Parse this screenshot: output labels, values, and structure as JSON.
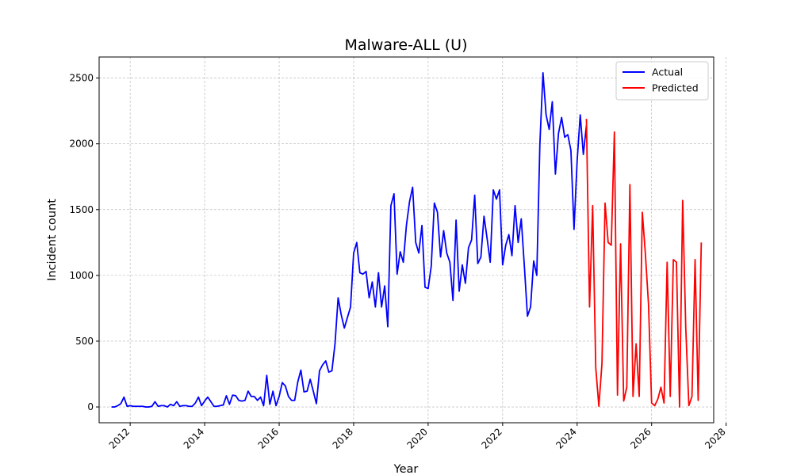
{
  "chart_data": {
    "type": "line",
    "title": "Malware-ALL (U)",
    "xlabel": "Year",
    "ylabel": "Incident count",
    "xlim": [
      "2011-03-01",
      "2027-09-01"
    ],
    "ylim": [
      -120,
      2660
    ],
    "x_ticks": [
      "2012",
      "2014",
      "2016",
      "2018",
      "2020",
      "2022",
      "2024",
      "2026",
      "2028"
    ],
    "y_ticks": [
      "0",
      "500",
      "1000",
      "1500",
      "2000",
      "2500"
    ],
    "grid": true,
    "legend_position": "top-right",
    "series": [
      {
        "name": "Actual",
        "color": "#0000ff",
        "x": [
          "2011-07",
          "2011-08",
          "2011-09",
          "2011-10",
          "2011-11",
          "2011-12",
          "2012-01",
          "2012-02",
          "2012-03",
          "2012-04",
          "2012-05",
          "2012-06",
          "2012-07",
          "2012-08",
          "2012-09",
          "2012-10",
          "2012-11",
          "2012-12",
          "2013-01",
          "2013-02",
          "2013-03",
          "2013-04",
          "2013-05",
          "2013-06",
          "2013-07",
          "2013-08",
          "2013-09",
          "2013-10",
          "2013-11",
          "2013-12",
          "2014-01",
          "2014-02",
          "2014-03",
          "2014-04",
          "2014-05",
          "2014-06",
          "2014-07",
          "2014-08",
          "2014-09",
          "2014-10",
          "2014-11",
          "2014-12",
          "2015-01",
          "2015-02",
          "2015-03",
          "2015-04",
          "2015-05",
          "2015-06",
          "2015-07",
          "2015-08",
          "2015-09",
          "2015-10",
          "2015-11",
          "2015-12",
          "2016-01",
          "2016-02",
          "2016-03",
          "2016-04",
          "2016-05",
          "2016-06",
          "2016-07",
          "2016-08",
          "2016-09",
          "2016-10",
          "2016-11",
          "2016-12",
          "2017-01",
          "2017-02",
          "2017-03",
          "2017-04",
          "2017-05",
          "2017-06",
          "2017-07",
          "2017-08",
          "2017-09",
          "2017-10",
          "2017-11",
          "2017-12",
          "2018-01",
          "2018-02",
          "2018-03",
          "2018-04",
          "2018-05",
          "2018-06",
          "2018-07",
          "2018-08",
          "2018-09",
          "2018-10",
          "2018-11",
          "2018-12",
          "2019-01",
          "2019-02",
          "2019-03",
          "2019-04",
          "2019-05",
          "2019-06",
          "2019-07",
          "2019-08",
          "2019-09",
          "2019-10",
          "2019-11",
          "2019-12",
          "2020-01",
          "2020-02",
          "2020-03",
          "2020-04",
          "2020-05",
          "2020-06",
          "2020-07",
          "2020-08",
          "2020-09",
          "2020-10",
          "2020-11",
          "2020-12",
          "2021-01",
          "2021-02",
          "2021-03",
          "2021-04",
          "2021-05",
          "2021-06",
          "2021-07",
          "2021-08",
          "2021-09",
          "2021-10",
          "2021-11",
          "2021-12",
          "2022-01",
          "2022-02",
          "2022-03",
          "2022-04",
          "2022-05",
          "2022-06",
          "2022-07",
          "2022-08",
          "2022-09",
          "2022-10",
          "2022-11",
          "2022-12",
          "2023-01",
          "2023-02",
          "2023-03",
          "2023-04",
          "2023-05",
          "2023-06",
          "2023-07",
          "2023-08",
          "2023-09",
          "2023-10",
          "2023-11",
          "2023-12",
          "2024-01",
          "2024-02",
          "2024-03",
          "2024-04"
        ],
        "values": [
          0,
          0,
          10,
          25,
          75,
          5,
          10,
          5,
          5,
          5,
          5,
          0,
          0,
          5,
          40,
          5,
          10,
          10,
          0,
          20,
          10,
          40,
          5,
          10,
          10,
          5,
          5,
          30,
          75,
          10,
          45,
          75,
          40,
          5,
          5,
          10,
          15,
          85,
          20,
          90,
          85,
          50,
          45,
          50,
          120,
          80,
          80,
          50,
          75,
          10,
          240,
          20,
          120,
          10,
          80,
          185,
          160,
          80,
          50,
          50,
          190,
          280,
          115,
          120,
          210,
          120,
          25,
          275,
          320,
          350,
          265,
          275,
          480,
          830,
          700,
          600,
          680,
          760,
          1170,
          1250,
          1020,
          1010,
          1030,
          830,
          950,
          760,
          1020,
          760,
          920,
          610,
          1530,
          1620,
          1010,
          1180,
          1100,
          1380,
          1560,
          1670,
          1250,
          1170,
          1380,
          910,
          900,
          1070,
          1550,
          1480,
          1140,
          1340,
          1170,
          1100,
          810,
          1420,
          880,
          1080,
          940,
          1210,
          1270,
          1610,
          1090,
          1140,
          1450,
          1280,
          1100,
          1650,
          1580,
          1650,
          1080,
          1230,
          1310,
          1150,
          1530,
          1250,
          1430,
          1070,
          690,
          760,
          1110,
          1000,
          2000,
          2540,
          2220,
          2110,
          2320,
          1770,
          2080,
          2200,
          2050,
          2070,
          1950,
          1350,
          1870,
          2220,
          1920,
          2140
        ]
      },
      {
        "name": "Predicted",
        "color": "#ff0000",
        "x": [
          "2024-04",
          "2024-05",
          "2024-06",
          "2024-07",
          "2024-08",
          "2024-09",
          "2024-10",
          "2024-11",
          "2024-12",
          "2025-01",
          "2025-02",
          "2025-03",
          "2025-04",
          "2025-05",
          "2025-06",
          "2025-07",
          "2025-08",
          "2025-09",
          "2025-10",
          "2025-11",
          "2025-12",
          "2026-01",
          "2026-02",
          "2026-03",
          "2026-04",
          "2026-05",
          "2026-06",
          "2026-07",
          "2026-08",
          "2026-09",
          "2026-10",
          "2026-11",
          "2026-12",
          "2027-01",
          "2027-02",
          "2027-03",
          "2027-04",
          "2027-05"
        ],
        "values": [
          2190,
          760,
          1530,
          300,
          5,
          330,
          1550,
          1250,
          1230,
          2090,
          90,
          1240,
          45,
          150,
          1690,
          80,
          480,
          80,
          1480,
          1160,
          780,
          30,
          10,
          60,
          150,
          30,
          1100,
          80,
          1120,
          1100,
          0,
          1570,
          600,
          10,
          80,
          1120,
          50,
          1250
        ]
      }
    ]
  }
}
